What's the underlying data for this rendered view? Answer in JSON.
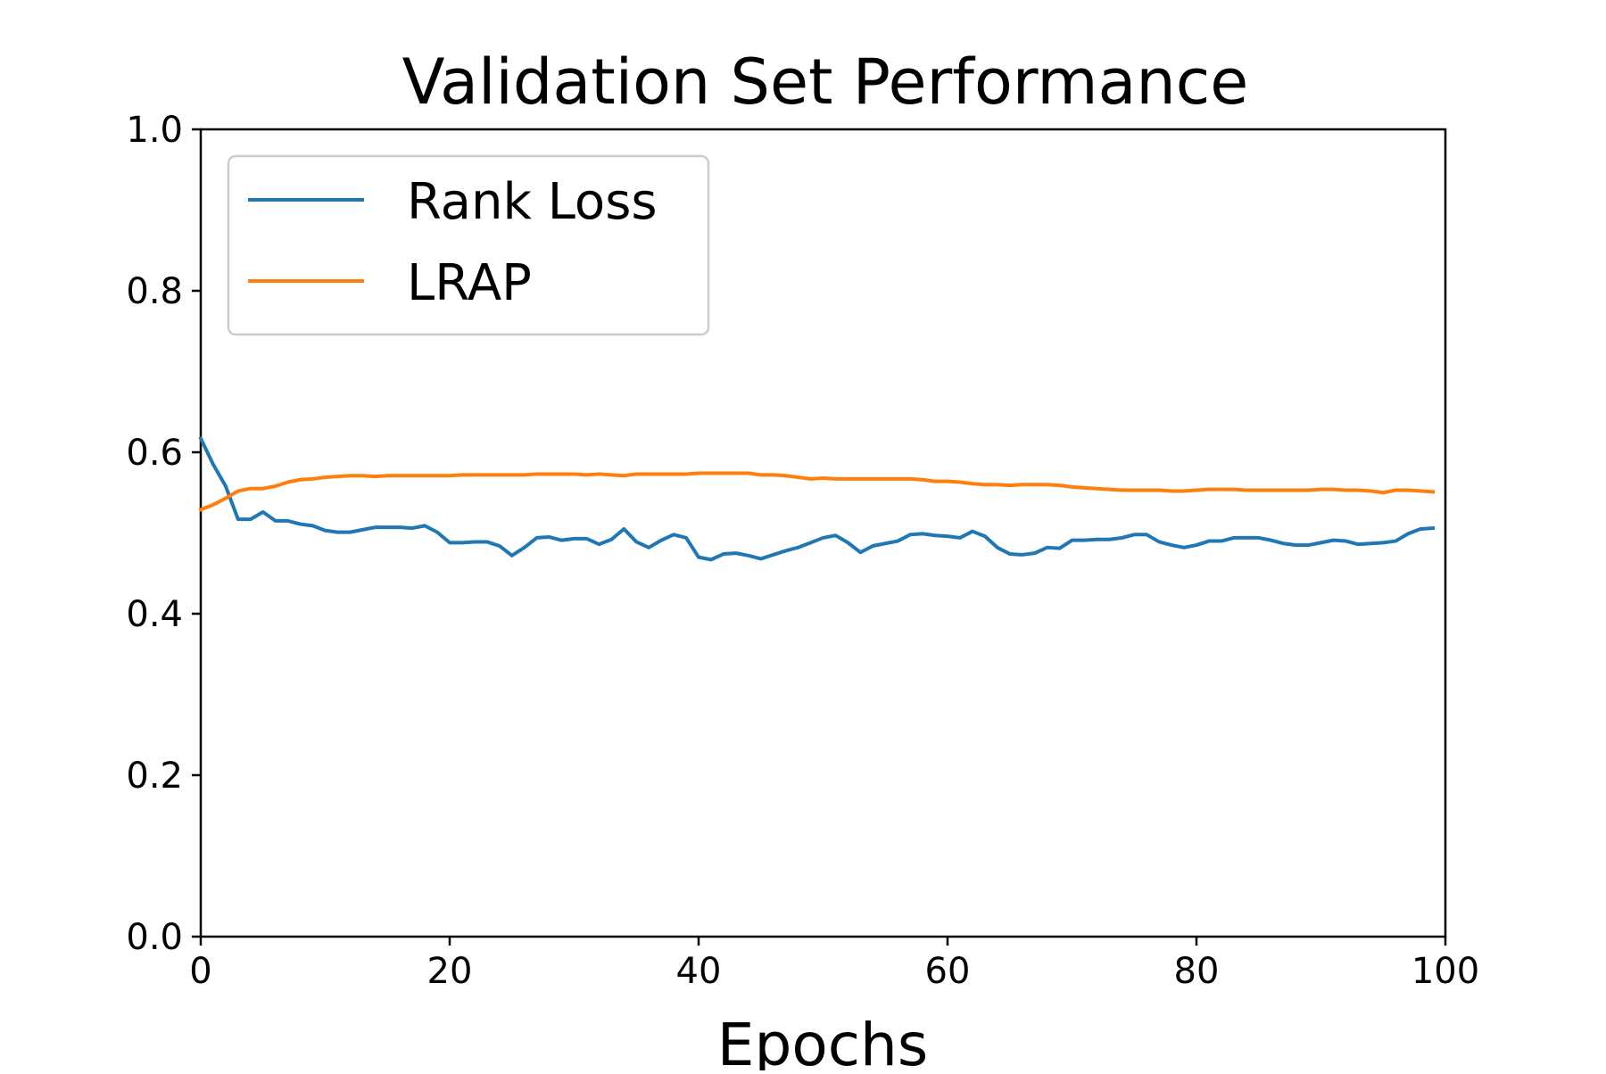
{
  "chart_data": {
    "type": "line",
    "title": "Validation Set Performance",
    "xlabel": "Epochs",
    "ylabel": "",
    "xlim": [
      0,
      100
    ],
    "ylim": [
      0.0,
      1.0
    ],
    "x_ticks": [
      "0",
      "20",
      "40",
      "60",
      "80",
      "100"
    ],
    "y_ticks": [
      "0.0",
      "0.2",
      "0.4",
      "0.6",
      "0.8",
      "1.0"
    ],
    "x_tick_values": [
      0,
      20,
      40,
      60,
      80,
      100
    ],
    "y_tick_values": [
      0.0,
      0.2,
      0.4,
      0.6,
      0.8,
      1.0
    ],
    "grid": false,
    "legend_position": "top-left",
    "x": [
      0,
      1,
      2,
      3,
      4,
      5,
      6,
      7,
      8,
      9,
      10,
      11,
      12,
      13,
      14,
      15,
      16,
      17,
      18,
      19,
      20,
      21,
      22,
      23,
      24,
      25,
      26,
      27,
      28,
      29,
      30,
      31,
      32,
      33,
      34,
      35,
      36,
      37,
      38,
      39,
      40,
      41,
      42,
      43,
      44,
      45,
      46,
      47,
      48,
      49,
      50,
      51,
      52,
      53,
      54,
      55,
      56,
      57,
      58,
      59,
      60,
      61,
      62,
      63,
      64,
      65,
      66,
      67,
      68,
      69,
      70,
      71,
      72,
      73,
      74,
      75,
      76,
      77,
      78,
      79,
      80,
      81,
      82,
      83,
      84,
      85,
      86,
      87,
      88,
      89,
      90,
      91,
      92,
      93,
      94,
      95,
      96,
      97,
      98,
      99
    ],
    "series": [
      {
        "name": "Rank Loss",
        "color": "#1f77b4",
        "values": [
          0.617,
          0.585,
          0.558,
          0.517,
          0.517,
          0.526,
          0.515,
          0.515,
          0.511,
          0.509,
          0.503,
          0.501,
          0.501,
          0.504,
          0.507,
          0.507,
          0.507,
          0.506,
          0.509,
          0.501,
          0.488,
          0.488,
          0.489,
          0.489,
          0.484,
          0.472,
          0.482,
          0.494,
          0.495,
          0.491,
          0.493,
          0.493,
          0.486,
          0.492,
          0.505,
          0.489,
          0.482,
          0.491,
          0.498,
          0.494,
          0.47,
          0.467,
          0.474,
          0.475,
          0.472,
          0.468,
          0.473,
          0.478,
          0.482,
          0.488,
          0.494,
          0.497,
          0.488,
          0.476,
          0.484,
          0.487,
          0.49,
          0.498,
          0.499,
          0.497,
          0.496,
          0.494,
          0.502,
          0.496,
          0.482,
          0.474,
          0.473,
          0.475,
          0.482,
          0.481,
          0.491,
          0.491,
          0.492,
          0.492,
          0.494,
          0.498,
          0.498,
          0.489,
          0.485,
          0.482,
          0.485,
          0.49,
          0.49,
          0.494,
          0.494,
          0.494,
          0.491,
          0.487,
          0.485,
          0.485,
          0.488,
          0.491,
          0.49,
          0.486,
          0.487,
          0.488,
          0.49,
          0.499,
          0.505,
          0.506
        ]
      },
      {
        "name": "LRAP",
        "color": "#ff7f0e",
        "values": [
          0.529,
          0.535,
          0.543,
          0.552,
          0.555,
          0.555,
          0.558,
          0.563,
          0.566,
          0.567,
          0.569,
          0.57,
          0.571,
          0.571,
          0.57,
          0.571,
          0.571,
          0.571,
          0.571,
          0.571,
          0.571,
          0.572,
          0.572,
          0.572,
          0.572,
          0.572,
          0.572,
          0.573,
          0.573,
          0.573,
          0.573,
          0.572,
          0.573,
          0.572,
          0.571,
          0.573,
          0.573,
          0.573,
          0.573,
          0.573,
          0.574,
          0.574,
          0.574,
          0.574,
          0.574,
          0.572,
          0.572,
          0.571,
          0.569,
          0.567,
          0.568,
          0.567,
          0.567,
          0.567,
          0.567,
          0.567,
          0.567,
          0.567,
          0.566,
          0.564,
          0.564,
          0.563,
          0.561,
          0.56,
          0.56,
          0.559,
          0.56,
          0.56,
          0.56,
          0.559,
          0.557,
          0.556,
          0.555,
          0.554,
          0.553,
          0.553,
          0.553,
          0.553,
          0.552,
          0.552,
          0.553,
          0.554,
          0.554,
          0.554,
          0.553,
          0.553,
          0.553,
          0.553,
          0.553,
          0.553,
          0.554,
          0.554,
          0.553,
          0.553,
          0.552,
          0.55,
          0.553,
          0.553,
          0.552,
          0.551
        ]
      }
    ]
  }
}
